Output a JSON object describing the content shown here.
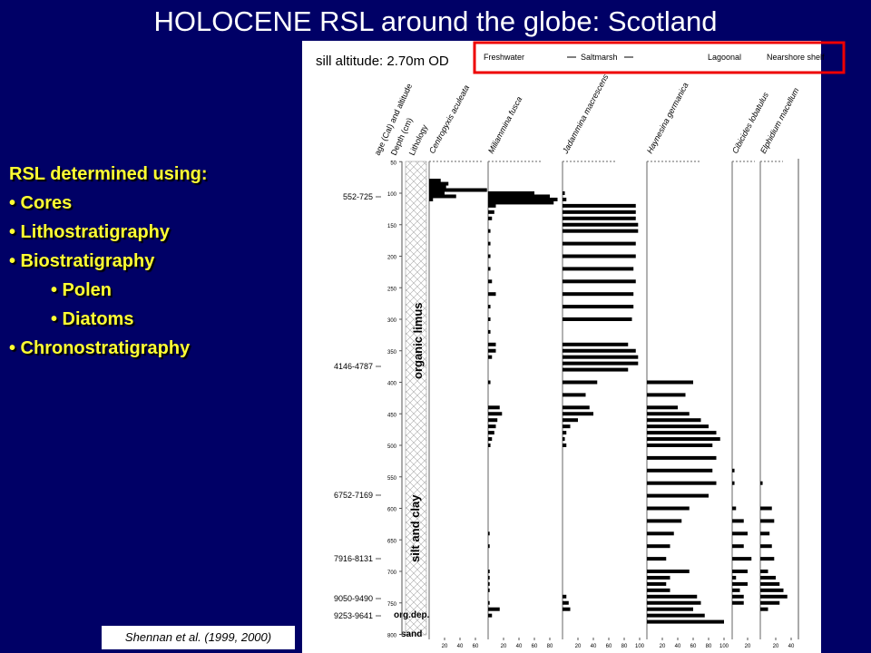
{
  "title": "HOLOCENE RSL around the globe: Scotland",
  "bullets": {
    "heading": "RSL determined using:",
    "items": [
      "• Cores",
      "• Lithostratigraphy",
      "• Biostratigraphy",
      "• Polen",
      "• Diatoms",
      "• Chronostratigraphy"
    ]
  },
  "citation": "Shennan et al. (1999, 2000)",
  "figure": {
    "subtitle": "sill altitude: 2.70m OD",
    "legend": [
      "Freshwater",
      "Saltmarsh",
      "Lagoonal",
      "Nearshore shelf"
    ],
    "columns": [
      "age (Cal) and altitude",
      "Depth (cm)",
      "Lithology"
    ],
    "ages": [
      "552-725",
      "4146-4787",
      "6752-7169",
      "7916-8131",
      "9050-9490",
      "9253-9641"
    ],
    "lithology": [
      "organic limus",
      "silt and clay",
      "org.dep.",
      "sand"
    ],
    "depth_ticks": [
      50,
      100,
      150,
      200,
      250,
      300,
      350,
      400,
      450,
      500,
      550,
      600,
      650,
      700,
      750,
      800
    ],
    "depths": [
      80,
      85,
      90,
      95,
      100,
      105,
      110,
      115,
      120,
      130,
      140,
      150,
      160,
      180,
      200,
      220,
      240,
      260,
      280,
      300,
      320,
      340,
      350,
      360,
      370,
      380,
      400,
      420,
      440,
      450,
      460,
      470,
      480,
      490,
      500,
      520,
      540,
      560,
      580,
      600,
      620,
      640,
      660,
      680,
      700,
      710,
      720,
      730,
      740,
      750,
      760,
      770,
      780
    ],
    "series": [
      {
        "name": "Centropyxis aculeata",
        "ticks": [
          20,
          40,
          60
        ],
        "values": [
          15,
          25,
          22,
          75,
          20,
          35,
          5,
          0,
          0,
          0,
          0,
          0,
          0,
          0,
          0,
          0,
          0,
          0,
          0,
          0,
          0,
          0,
          0,
          0,
          0,
          0,
          0,
          0,
          0,
          0,
          0,
          0,
          0,
          0,
          0,
          0,
          0,
          0,
          0,
          0,
          0,
          0,
          0,
          0,
          0,
          0,
          0,
          0,
          0,
          0,
          0,
          0,
          0
        ]
      },
      {
        "name": "Miliammina fusca",
        "ticks": [
          20,
          40,
          60,
          80
        ],
        "values": [
          0,
          0,
          0,
          0,
          60,
          80,
          90,
          85,
          10,
          8,
          5,
          0,
          3,
          3,
          3,
          3,
          5,
          10,
          3,
          3,
          3,
          10,
          10,
          5,
          0,
          0,
          3,
          0,
          15,
          18,
          12,
          10,
          8,
          5,
          3,
          0,
          0,
          0,
          0,
          0,
          0,
          2,
          2,
          0,
          2,
          2,
          2,
          2,
          0,
          2,
          15,
          5,
          0
        ]
      },
      {
        "name": "Jadammina macrescens",
        "ticks": [
          20,
          40,
          60,
          80,
          100
        ],
        "values": [
          0,
          0,
          0,
          0,
          3,
          0,
          5,
          0,
          95,
          95,
          95,
          98,
          98,
          95,
          95,
          92,
          95,
          92,
          92,
          90,
          0,
          85,
          95,
          98,
          98,
          85,
          45,
          30,
          35,
          40,
          20,
          10,
          5,
          3,
          5,
          0,
          0,
          0,
          0,
          0,
          0,
          0,
          0,
          0,
          0,
          0,
          0,
          0,
          5,
          8,
          10,
          0,
          0
        ]
      },
      {
        "name": "Haynesina germanica",
        "ticks": [
          20,
          40,
          60,
          80,
          100
        ],
        "values": [
          0,
          0,
          0,
          0,
          0,
          0,
          0,
          0,
          0,
          0,
          0,
          0,
          0,
          0,
          0,
          0,
          0,
          0,
          0,
          0,
          0,
          0,
          0,
          0,
          0,
          0,
          60,
          50,
          40,
          55,
          70,
          80,
          90,
          95,
          85,
          90,
          85,
          90,
          80,
          55,
          45,
          35,
          30,
          25,
          55,
          30,
          25,
          30,
          65,
          70,
          60,
          75,
          100
        ]
      },
      {
        "name": "Cibicides lobatulus",
        "ticks": [
          20
        ],
        "values": [
          0,
          0,
          0,
          0,
          0,
          0,
          0,
          0,
          0,
          0,
          0,
          0,
          0,
          0,
          0,
          0,
          0,
          0,
          0,
          0,
          0,
          0,
          0,
          0,
          0,
          0,
          0,
          0,
          0,
          0,
          0,
          0,
          0,
          0,
          0,
          0,
          3,
          3,
          0,
          5,
          15,
          20,
          15,
          25,
          20,
          5,
          20,
          10,
          15,
          15,
          0,
          0,
          0
        ]
      },
      {
        "name": "Elphidium macellum",
        "ticks": [
          20,
          40
        ],
        "values": [
          0,
          0,
          0,
          0,
          0,
          0,
          0,
          0,
          0,
          0,
          0,
          0,
          0,
          0,
          0,
          0,
          0,
          0,
          0,
          0,
          0,
          0,
          0,
          0,
          0,
          0,
          0,
          0,
          0,
          0,
          0,
          0,
          0,
          0,
          0,
          0,
          0,
          3,
          0,
          15,
          18,
          12,
          15,
          18,
          10,
          20,
          25,
          30,
          35,
          25,
          10,
          0,
          0
        ]
      }
    ]
  }
}
